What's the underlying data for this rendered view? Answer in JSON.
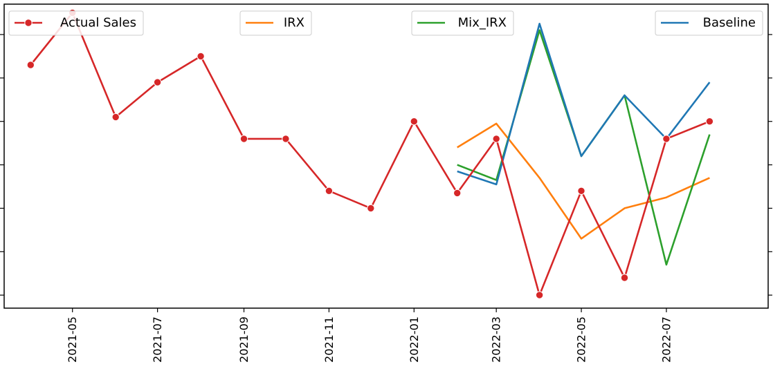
{
  "chart_data": {
    "type": "line",
    "title": "",
    "xlabel": "",
    "ylabel": "",
    "x_tick_labels": [
      "2021-05",
      "2021-07",
      "2021-09",
      "2021-11",
      "2022-01",
      "2022-03",
      "2022-05",
      "2022-07"
    ],
    "x_ticks": [
      "2021-05",
      "2021-07",
      "2021-09",
      "2021-11",
      "2022-01",
      "2022-03",
      "2022-05",
      "2022-07"
    ],
    "xlim": [
      "2021-03-13",
      "2022-09-12"
    ],
    "ylim": [
      -0.3,
      6.7
    ],
    "y_tick_count": 7,
    "y_ticks": [
      0,
      1,
      2,
      3,
      4,
      5,
      6
    ],
    "grid": false,
    "series": [
      {
        "name": "Actual Sales",
        "color": "#d62728",
        "marker": "circle",
        "x": [
          "2021-04",
          "2021-05",
          "2021-06",
          "2021-07",
          "2021-08",
          "2021-09",
          "2021-10",
          "2021-11",
          "2021-12",
          "2022-01",
          "2022-02",
          "2022-03",
          "2022-04",
          "2022-05",
          "2022-06",
          "2022-07",
          "2022-08"
        ],
        "values": [
          5.3,
          6.5,
          4.1,
          4.9,
          5.5,
          3.6,
          3.6,
          2.4,
          2.0,
          4.0,
          2.35,
          3.6,
          0.0,
          2.4,
          0.4,
          3.6,
          4.0
        ]
      },
      {
        "name": "IRX",
        "color": "#ff7f0e",
        "marker": "none",
        "x": [
          "2022-02",
          "2022-03",
          "2022-04",
          "2022-05",
          "2022-06",
          "2022-07",
          "2022-08"
        ],
        "values": [
          3.4,
          3.95,
          2.7,
          1.3,
          2.0,
          2.25,
          2.7
        ]
      },
      {
        "name": "Mix_IRX",
        "color": "#2ca02c",
        "marker": "none",
        "x": [
          "2022-02",
          "2022-03",
          "2022-04",
          "2022-05",
          "2022-06",
          "2022-07",
          "2022-08"
        ],
        "values": [
          3.0,
          2.65,
          6.1,
          3.2,
          4.6,
          0.7,
          3.7
        ]
      },
      {
        "name": "Baseline",
        "color": "#1f77b4",
        "marker": "none",
        "x": [
          "2022-02",
          "2022-03",
          "2022-04",
          "2022-05",
          "2022-06",
          "2022-07",
          "2022-08"
        ],
        "values": [
          2.85,
          2.55,
          6.25,
          3.2,
          4.6,
          3.6,
          4.9
        ]
      }
    ],
    "legends": [
      {
        "series": "Actual Sales",
        "placement": "top-left"
      },
      {
        "series": "IRX",
        "placement": "top-center-left"
      },
      {
        "series": "Mix_IRX",
        "placement": "top-center-right"
      },
      {
        "series": "Baseline",
        "placement": "top-right"
      }
    ]
  }
}
